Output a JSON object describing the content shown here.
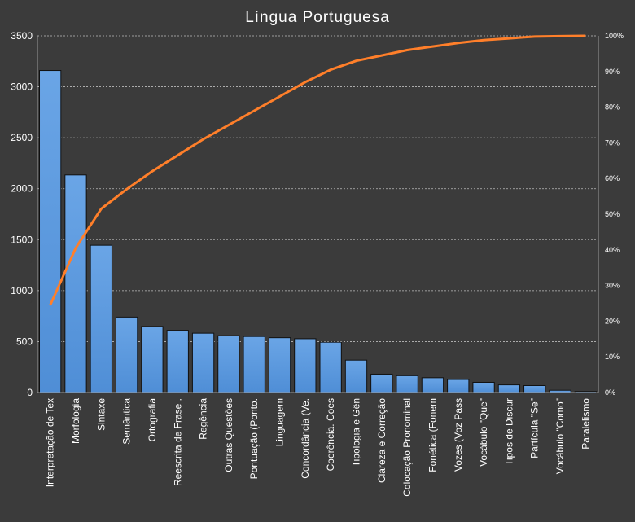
{
  "chart_data": {
    "type": "bar",
    "title": "Língua Portuguesa",
    "xlabel": "",
    "ylabel": "",
    "ylim": [
      0,
      3500
    ],
    "y_ticks": [
      "0",
      "500",
      "1000",
      "1500",
      "2000",
      "2500",
      "3000",
      "3500"
    ],
    "y2lim": [
      0,
      100
    ],
    "y2_ticks": [
      "0%",
      "10%",
      "20%",
      "30%",
      "40%",
      "50%",
      "60%",
      "70%",
      "80%",
      "90%",
      "100%"
    ],
    "grid": true,
    "legend": "none",
    "categories": [
      "Interpretação de Tex",
      "Morfologia",
      "Sintaxe",
      "Semântica",
      "Ortografia",
      "Reescrita de Frase .",
      "Regência",
      "Outras Questões",
      "Pontuação (Ponto.",
      "Linguagem",
      "Concordância (Ve.",
      "Coerência. Coes",
      "Tipologia e Gên",
      "Clareza e Correção",
      "Colocação Pronominal",
      "Fonética (Fonem",
      "Vozes (Voz Pass",
      "Vocábulo \"Que\"",
      "Tipos de Discur",
      "Partícula \"Se\"",
      "Vocábulo \"Como\"",
      "Paralelismo"
    ],
    "series": [
      {
        "type": "bar",
        "axis": "left",
        "color": "#4f8ed6",
        "values": [
          3160,
          2135,
          1445,
          740,
          648,
          610,
          582,
          558,
          550,
          538,
          528,
          494,
          318,
          180,
          165,
          145,
          128,
          100,
          75,
          68,
          22,
          10
        ]
      },
      {
        "type": "line",
        "axis": "right",
        "color": "#ff7f2a",
        "values": [
          24.5,
          40.5,
          51.5,
          57,
          62,
          66.5,
          71,
          75,
          79,
          83,
          87,
          90.5,
          93,
          94.5,
          96,
          97,
          98,
          98.8,
          99.3,
          99.8,
          99.9,
          100
        ]
      }
    ]
  }
}
